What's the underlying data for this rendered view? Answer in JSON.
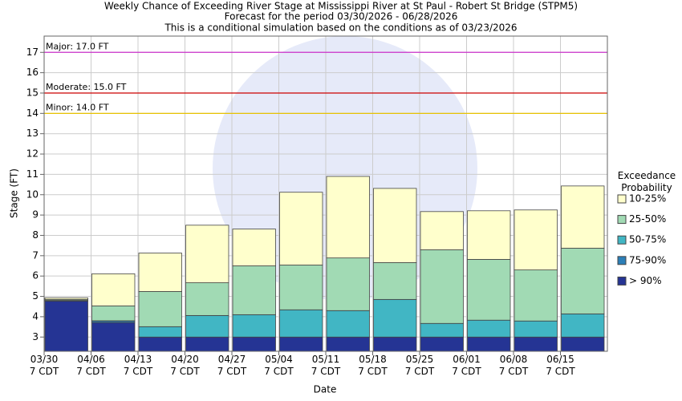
{
  "chart_data": {
    "type": "bar",
    "title": "Weekly Chance of Exceeding River Stage at Mississippi River at St Paul - Robert St Bridge (STPM5)",
    "subtitle": "Forecast for the period 03/30/2026 - 06/28/2026",
    "note": "This is a conditional simulation based on the conditions as of 03/23/2026",
    "x_label": "Date",
    "y_label": "Stage (FT)",
    "categories": [
      "03/30\n7 CDT",
      "04/06\n7 CDT",
      "04/13\n7 CDT",
      "04/20\n7 CDT",
      "04/27\n7 CDT",
      "05/04\n7 CDT",
      "05/11\n7 CDT",
      "05/18\n7 CDT",
      "05/25\n7 CDT",
      "06/01\n7 CDT",
      "06/08\n7 CDT",
      "06/15\n7 CDT"
    ],
    "legend_title": "Exceedance\nProbability",
    "series": [
      {
        "name": "10-25%",
        "color": "#ffffcc",
        "values": [
          4.93,
          6.11,
          7.13,
          8.5,
          8.31,
          10.12,
          10.9,
          10.31,
          9.17,
          9.21,
          9.25,
          10.43
        ]
      },
      {
        "name": "25-50%",
        "color": "#a1dab4",
        "values": [
          4.85,
          4.53,
          5.24,
          5.67,
          6.5,
          6.54,
          6.89,
          6.66,
          7.29,
          6.82,
          6.3,
          7.37
        ]
      },
      {
        "name": "50-75%",
        "color": "#41b6c4",
        "values": [
          4.8,
          3.8,
          3.51,
          4.06,
          4.1,
          4.34,
          4.3,
          4.85,
          3.67,
          3.83,
          3.79,
          4.14
        ]
      },
      {
        "name": "75-90%",
        "color": "#2c7fb8",
        "values": [
          4.8,
          3.79,
          3.0,
          3.0,
          3.0,
          3.0,
          3.0,
          3.0,
          3.0,
          3.0,
          3.0,
          3.0
        ]
      },
      {
        "name": "> 90%",
        "color": "#253494",
        "values": [
          4.77,
          3.71,
          3.0,
          3.0,
          3.0,
          3.0,
          3.0,
          3.0,
          3.0,
          3.0,
          3.0,
          3.0
        ]
      }
    ],
    "thresholds": [
      {
        "label": "Major: 17.0 FT",
        "value": 17,
        "color": "#cc33cc"
      },
      {
        "label": "Moderate: 15.0 FT",
        "value": 15,
        "color": "#cc0000"
      },
      {
        "label": "Minor: 14.0 FT",
        "value": 14,
        "color": "#e6c200"
      }
    ],
    "ylim": [
      2.3,
      17.8
    ],
    "yticks": [
      3,
      4,
      5,
      6,
      7,
      8,
      9,
      10,
      11,
      12,
      13,
      14,
      15,
      16,
      17
    ],
    "grid": true
  }
}
